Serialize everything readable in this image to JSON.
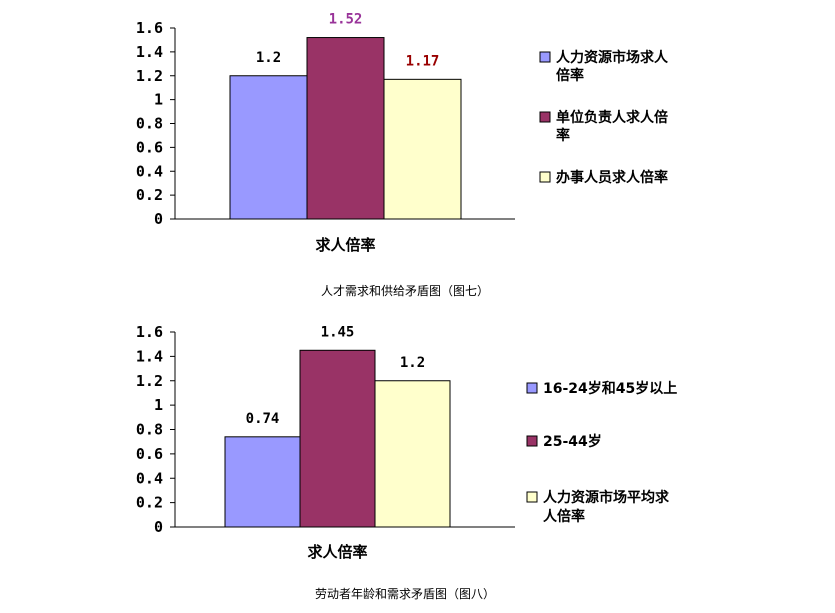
{
  "chart_data": [
    {
      "type": "bar",
      "categories": [
        "求人倍率"
      ],
      "series": [
        {
          "name": "人力资源市场求人倍率",
          "values": [
            1.2
          ],
          "color": "#9999ff",
          "label": "1.2",
          "label_color": "#000000"
        },
        {
          "name": "单位负责人求人倍率",
          "values": [
            1.52
          ],
          "color": "#993366",
          "label": "1.52",
          "label_color": "#993399"
        },
        {
          "name": "办事人员求人倍率",
          "values": [
            1.17
          ],
          "color": "#ffffcc",
          "label": "1.17",
          "label_color": "#990000"
        }
      ],
      "legend_lines": [
        [
          "人力资源市场求人",
          "倍率"
        ],
        [
          "单位负责人求人倍",
          "率"
        ],
        [
          "办事人员求人倍率"
        ]
      ],
      "ylim": [
        0,
        1.6
      ],
      "yticks": [
        "0",
        "0.2",
        "0.4",
        "0.6",
        "0.8",
        "1",
        "1.2",
        "1.4",
        "1.6"
      ],
      "grid": false,
      "legend": "right",
      "caption": "人才需求和供给矛盾图（图七）"
    },
    {
      "type": "bar",
      "categories": [
        "求人倍率"
      ],
      "series": [
        {
          "name": "16-24岁和45岁以上",
          "values": [
            0.74
          ],
          "color": "#9999ff",
          "label": "0.74",
          "label_color": "#000000"
        },
        {
          "name": "25-44岁",
          "values": [
            1.45
          ],
          "color": "#993366",
          "label": "1.45",
          "label_color": "#000000"
        },
        {
          "name": "人力资源市场平均求人倍率",
          "values": [
            1.2
          ],
          "color": "#ffffcc",
          "label": "1.2",
          "label_color": "#000000"
        }
      ],
      "legend_lines": [
        [
          "16-24岁和45岁以上"
        ],
        [
          "25-44岁"
        ],
        [
          "人力资源市场平均求",
          "人倍率"
        ]
      ],
      "ylim": [
        0,
        1.6
      ],
      "yticks": [
        "0",
        "0.2",
        "0.4",
        "0.6",
        "0.8",
        "1",
        "1.2",
        "1.4",
        "1.6"
      ],
      "grid": false,
      "legend": "right",
      "caption": "劳动者年龄和需求矛盾图（图八）"
    }
  ]
}
